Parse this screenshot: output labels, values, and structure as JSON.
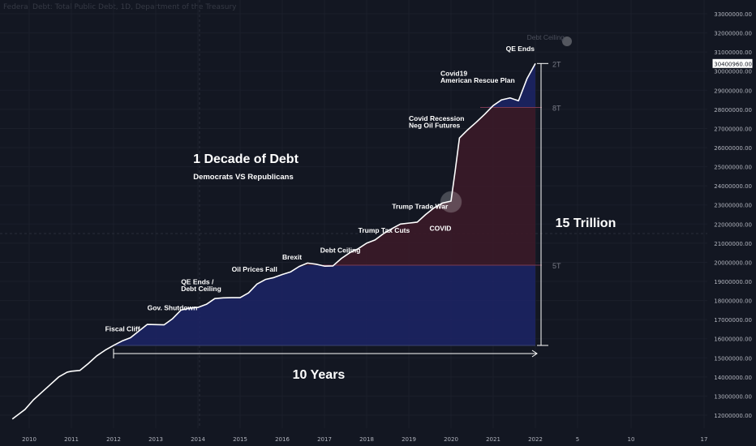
{
  "header": {
    "title": "Federal Debt: Total Public Debt, 1D, Department of the Treasury"
  },
  "colors": {
    "background": "#131722",
    "line": "#ffffff",
    "blue_fill": "#1c2466",
    "red_fill": "#3b1a28",
    "text": "#ffffff",
    "muted": "#787b86"
  },
  "chart_data": {
    "type": "line",
    "title": "",
    "xlabel": "",
    "ylabel": "",
    "ylim": [
      11500000,
      33000000
    ],
    "x_ticks": [
      "2010",
      "2011",
      "2012",
      "2013",
      "2014",
      "2015",
      "2016",
      "2017",
      "2018",
      "2019",
      "2020",
      "2021",
      "2022",
      "5",
      "10",
      "17"
    ],
    "y_ticks": [
      12000000,
      13000000,
      14000000,
      15000000,
      16000000,
      17000000,
      18000000,
      19000000,
      20000000,
      21000000,
      22000000,
      23000000,
      24000000,
      25000000,
      26000000,
      27000000,
      28000000,
      29000000,
      30000000,
      31000000,
      32000000,
      33000000
    ],
    "last_value_label": "30400960.00",
    "series": [
      {
        "name": "",
        "x": [
          2009.6,
          2009.9,
          2010.1,
          2010.3,
          2010.5,
          2010.7,
          2010.9,
          2011.0,
          2011.2,
          2011.4,
          2011.6,
          2011.8,
          2012.0,
          2012.2,
          2012.4,
          2012.6,
          2012.8,
          2013.0,
          2013.2,
          2013.4,
          2013.6,
          2013.8,
          2014.0,
          2014.2,
          2014.4,
          2014.6,
          2014.8,
          2015.0,
          2015.2,
          2015.4,
          2015.6,
          2015.8,
          2016.0,
          2016.2,
          2016.4,
          2016.6,
          2016.8,
          2017.0,
          2017.2,
          2017.4,
          2017.6,
          2017.8,
          2018.0,
          2018.2,
          2018.4,
          2018.6,
          2018.8,
          2019.0,
          2019.2,
          2019.4,
          2019.6,
          2019.8,
          2020.0,
          2020.1,
          2020.2,
          2020.4,
          2020.6,
          2020.8,
          2021.0,
          2021.2,
          2021.4,
          2021.6,
          2021.8,
          2022.0
        ],
        "values": [
          11800000,
          12300000,
          12800000,
          13200000,
          13600000,
          14000000,
          14250000,
          14300000,
          14340000,
          14700000,
          15100000,
          15400000,
          15650000,
          15880000,
          16050000,
          16400000,
          16750000,
          16740000,
          16730000,
          17050000,
          17500000,
          17600000,
          17640000,
          17800000,
          18100000,
          18140000,
          18150000,
          18150000,
          18400000,
          18860000,
          19100000,
          19200000,
          19360000,
          19500000,
          19780000,
          19960000,
          19900000,
          19800000,
          19810000,
          20200000,
          20500000,
          20710000,
          21000000,
          21170000,
          21500000,
          21760000,
          22000000,
          22050000,
          22100000,
          22500000,
          22850000,
          23100000,
          23200000,
          24800000,
          26500000,
          26940000,
          27330000,
          27750000,
          28200000,
          28500000,
          28600000,
          28450000,
          29600000,
          30400000
        ]
      }
    ],
    "annotations": {
      "events": [
        {
          "text": "Fiscal Cliff",
          "x": 2011.8,
          "y": 16400000
        },
        {
          "text": "Gov. Shutdown",
          "x": 2012.8,
          "y": 17500000
        },
        {
          "text": "QE Ends /",
          "x": 2013.6,
          "y": 18850000
        },
        {
          "text": "Debt Ceiling",
          "x": 2013.6,
          "y": 18500000
        },
        {
          "text": "Oil Prices Fall",
          "x": 2014.8,
          "y": 19500000
        },
        {
          "text": "Brexit",
          "x": 2016.0,
          "y": 20150000
        },
        {
          "text": "Debt Ceiling",
          "x": 2016.9,
          "y": 20500000
        },
        {
          "text": "Trump Tax Cuts",
          "x": 2017.8,
          "y": 21550000
        },
        {
          "text": "Trump Trade War",
          "x": 2018.6,
          "y": 22800000
        },
        {
          "text": "COVID",
          "x": 2019.75,
          "y": 21650000
        },
        {
          "text": "Covid Recession",
          "x": 2019.0,
          "y": 27400000
        },
        {
          "text": "Neg Oil Futures",
          "x": 2019.0,
          "y": 27050000
        },
        {
          "text": "Covid19",
          "x": 2019.75,
          "y": 29750000
        },
        {
          "text": "American Rescue Plan",
          "x": 2019.75,
          "y": 29400000
        },
        {
          "text": "QE Ends",
          "x": 2021.3,
          "y": 31050000
        },
        {
          "text": "Debt Ceiling",
          "x": 2021.8,
          "y": 31650000
        }
      ],
      "headline": "1 Decade of Debt",
      "subheadline": "Democrats VS Republicans",
      "span_x_label": "10 Years",
      "span_y_label": "15 Trillion",
      "level_labels": [
        {
          "text": "2T",
          "y": 30400000
        },
        {
          "text": "8T",
          "y": 28100000
        },
        {
          "text": "5T",
          "y": 19850000
        }
      ]
    }
  }
}
